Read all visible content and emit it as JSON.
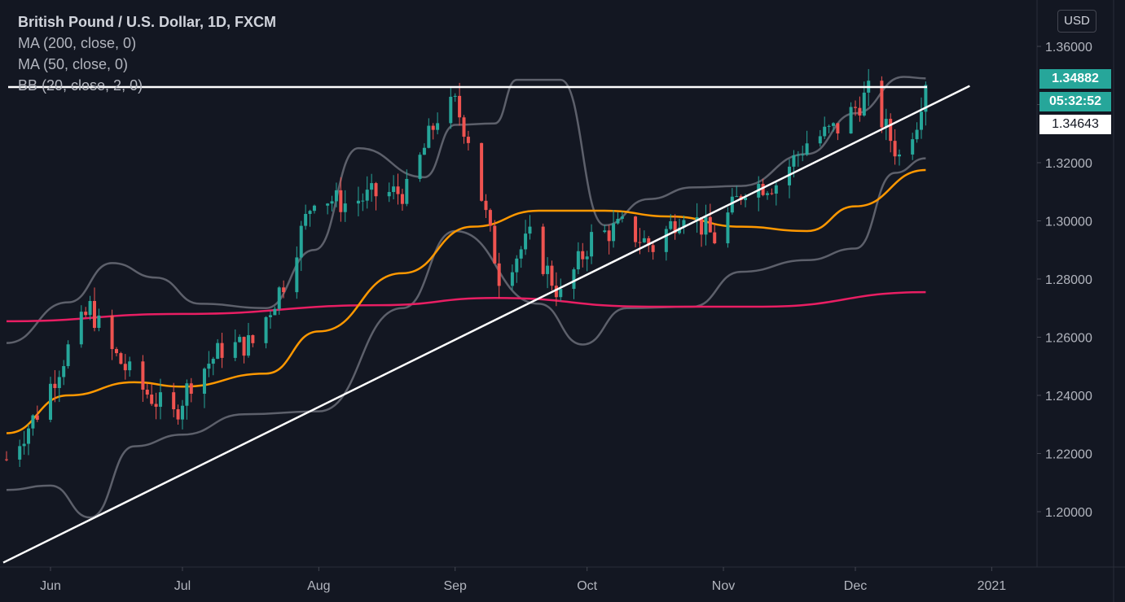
{
  "legend": {
    "title": "British Pound / U.S. Dollar, 1D, FXCM",
    "ind1": "MA (200, close, 0)",
    "ind2": "MA (50, close, 0)",
    "ind3": "BB (20, close, 2, 0)"
  },
  "currency_button": "USD",
  "tags": {
    "last_price": "1.34882",
    "countdown": "05:32:52",
    "trendline_value": "1.34643"
  },
  "colors": {
    "background": "#131722",
    "up": "#26a69a",
    "down": "#ef5350",
    "ma200": "#e91e63",
    "ma50": "#ff9800",
    "bb": "#5d606b",
    "lines": "#ffffff"
  },
  "chart_data": {
    "type": "candlestick",
    "symbol": "GBPUSD",
    "timeframe": "1D",
    "ylim": [
      1.18,
      1.37
    ],
    "y_ticks": [
      "1.36000",
      "1.34000",
      "1.32000",
      "1.30000",
      "1.28000",
      "1.26000",
      "1.24000",
      "1.22000",
      "1.20000"
    ],
    "x_ticks": [
      "Jun",
      "Jul",
      "Aug",
      "Sep",
      "Oct",
      "Nov",
      "Dec",
      "2021"
    ],
    "x_tick_dates": [
      "2020-06-01",
      "2020-07-01",
      "2020-08-01",
      "2020-09-01",
      "2020-10-01",
      "2020-11-01",
      "2020-12-01",
      "2021-01-01"
    ],
    "x_range": [
      "2020-05-22",
      "2021-01-09"
    ],
    "close_path": [
      [
        "2020-05-22",
        1.218
      ],
      [
        "2020-05-29",
        1.234
      ],
      [
        "2020-06-05",
        1.256
      ],
      [
        "2020-06-10",
        1.27
      ],
      [
        "2020-06-15",
        1.255
      ],
      [
        "2020-06-22",
        1.242
      ],
      [
        "2020-06-29",
        1.233
      ],
      [
        "2020-07-03",
        1.245
      ],
      [
        "2020-07-10",
        1.256
      ],
      [
        "2020-07-17",
        1.258
      ],
      [
        "2020-07-24",
        1.279
      ],
      [
        "2020-07-31",
        1.309
      ],
      [
        "2020-08-07",
        1.306
      ],
      [
        "2020-08-14",
        1.309
      ],
      [
        "2020-08-21",
        1.31
      ],
      [
        "2020-08-28",
        1.336
      ],
      [
        "2020-09-01",
        1.34
      ],
      [
        "2020-09-04",
        1.329
      ],
      [
        "2020-09-11",
        1.281
      ],
      [
        "2020-09-18",
        1.294
      ],
      [
        "2020-09-25",
        1.274
      ],
      [
        "2020-10-02",
        1.294
      ],
      [
        "2020-10-09",
        1.298
      ],
      [
        "2020-10-16",
        1.291
      ],
      [
        "2020-10-23",
        1.304
      ],
      [
        "2020-10-30",
        1.294
      ],
      [
        "2020-11-06",
        1.312
      ],
      [
        "2020-11-13",
        1.313
      ],
      [
        "2020-11-20",
        1.327
      ],
      [
        "2020-11-27",
        1.332
      ],
      [
        "2020-12-04",
        1.344
      ],
      [
        "2020-12-11",
        1.322
      ],
      [
        "2020-12-15",
        1.335
      ],
      [
        "2020-12-17",
        1.349
      ]
    ],
    "ma200": [
      [
        "2020-05-22",
        1.2655
      ],
      [
        "2020-07-01",
        1.268
      ],
      [
        "2020-08-15",
        1.271
      ],
      [
        "2020-09-10",
        1.2735
      ],
      [
        "2020-10-15",
        1.2705
      ],
      [
        "2020-11-10",
        1.2705
      ],
      [
        "2020-12-17",
        1.2755
      ]
    ],
    "ma50": [
      [
        "2020-05-22",
        1.227
      ],
      [
        "2020-06-05",
        1.24
      ],
      [
        "2020-06-20",
        1.2445
      ],
      [
        "2020-07-01",
        1.243
      ],
      [
        "2020-07-20",
        1.2475
      ],
      [
        "2020-08-01",
        1.262
      ],
      [
        "2020-08-20",
        1.282
      ],
      [
        "2020-09-05",
        1.298
      ],
      [
        "2020-09-20",
        1.3035
      ],
      [
        "2020-10-05",
        1.3035
      ],
      [
        "2020-10-20",
        1.3015
      ],
      [
        "2020-11-05",
        1.298
      ],
      [
        "2020-11-20",
        1.2965
      ],
      [
        "2020-12-01",
        1.305
      ],
      [
        "2020-12-17",
        1.3175
      ]
    ],
    "bb_upper": [
      [
        "2020-05-22",
        1.258
      ],
      [
        "2020-06-05",
        1.272
      ],
      [
        "2020-06-15",
        1.2855
      ],
      [
        "2020-06-25",
        1.2805
      ],
      [
        "2020-07-05",
        1.2715
      ],
      [
        "2020-07-20",
        1.27
      ],
      [
        "2020-07-31",
        1.29
      ],
      [
        "2020-08-10",
        1.325
      ],
      [
        "2020-08-25",
        1.315
      ],
      [
        "2020-09-01",
        1.333
      ],
      [
        "2020-09-10",
        1.3335
      ],
      [
        "2020-09-15",
        1.3485
      ],
      [
        "2020-09-25",
        1.3485
      ],
      [
        "2020-10-05",
        1.2985
      ],
      [
        "2020-10-15",
        1.3075
      ],
      [
        "2020-10-25",
        1.3115
      ],
      [
        "2020-11-05",
        1.312
      ],
      [
        "2020-11-20",
        1.323
      ],
      [
        "2020-12-01",
        1.337
      ],
      [
        "2020-12-12",
        1.3495
      ],
      [
        "2020-12-17",
        1.349
      ]
    ],
    "bb_lower": [
      [
        "2020-05-22",
        1.2075
      ],
      [
        "2020-06-01",
        1.209
      ],
      [
        "2020-06-10",
        1.198
      ],
      [
        "2020-06-20",
        1.2225
      ],
      [
        "2020-07-01",
        1.2265
      ],
      [
        "2020-07-15",
        1.2335
      ],
      [
        "2020-08-01",
        1.2345
      ],
      [
        "2020-08-20",
        1.27
      ],
      [
        "2020-09-01",
        1.2965
      ],
      [
        "2020-09-20",
        1.2715
      ],
      [
        "2020-09-30",
        1.2575
      ],
      [
        "2020-10-10",
        1.27
      ],
      [
        "2020-10-25",
        1.2705
      ],
      [
        "2020-11-05",
        1.2825
      ],
      [
        "2020-11-20",
        1.2865
      ],
      [
        "2020-12-01",
        1.2905
      ],
      [
        "2020-12-10",
        1.3165
      ],
      [
        "2020-12-17",
        1.3215
      ]
    ],
    "horizontal_line": 1.346,
    "trendline": [
      [
        "2020-05-22",
        1.1825
      ],
      [
        "2020-12-27",
        1.3464
      ]
    ],
    "last_price": 1.34882
  }
}
